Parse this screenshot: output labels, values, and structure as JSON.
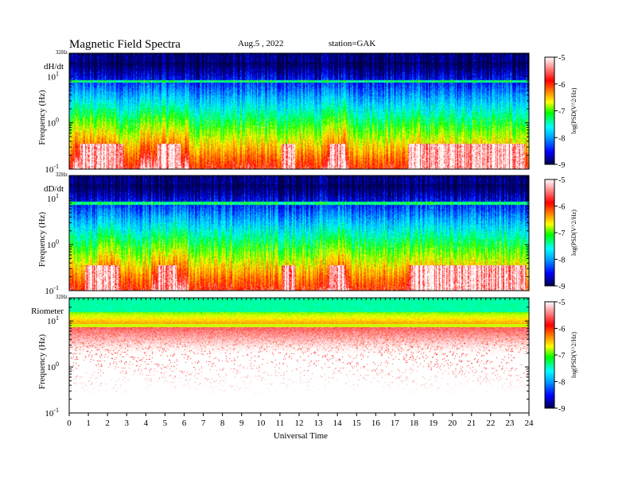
{
  "header": {
    "title": "Magnetic  Field  Spectra",
    "date": "Aug.5  , 2022",
    "station": "station=GAK"
  },
  "chart_data": {
    "type": "heatmap",
    "xlabel": "Universal Time",
    "x_ticks": [
      "0",
      "1",
      "2",
      "3",
      "4",
      "5",
      "6",
      "7",
      "8",
      "9",
      "10",
      "11",
      "12",
      "13",
      "14",
      "15",
      "16",
      "17",
      "18",
      "19",
      "20",
      "21",
      "22",
      "23",
      "24"
    ],
    "xlim": [
      0,
      24
    ],
    "ylim_hz": [
      0.1,
      32
    ],
    "y_scale": "log",
    "y_top_label": "32Hz",
    "y_tick_labels": [
      {
        "base": "10",
        "exp": "1",
        "value": 10
      },
      {
        "base": "10",
        "exp": "0",
        "value": 1
      },
      {
        "base": "10",
        "exp": "-1",
        "value": 0.1
      }
    ],
    "colormap": [
      "#00004a",
      "#0000ff",
      "#00a0ff",
      "#00ffff",
      "#00ff00",
      "#ffff00",
      "#ff8000",
      "#ff0000",
      "#ffffff"
    ],
    "panels": [
      {
        "label": "dH/dt",
        "ylabel": "Frequency  (Hz)",
        "colorbar": {
          "title": "log(PSD(V^2/Hz)",
          "range": [
            -9,
            -5
          ],
          "ticks": [
            "-5",
            "-6",
            "-7",
            "-8",
            "-9"
          ]
        },
        "noise_band_hz": 8,
        "quiet_white_patches_ut": [
          [
            0.5,
            2.8
          ],
          [
            4.6,
            5.8
          ],
          [
            11.1,
            11.8
          ],
          [
            13.6,
            14.4
          ],
          [
            17.7,
            23.8
          ]
        ],
        "enhanced_broadband_ut": [
          [
            0.2,
            2.6
          ],
          [
            3.7,
            6.2
          ],
          [
            13.5,
            14.6
          ]
        ]
      },
      {
        "label": "dD/dt",
        "ylabel": "Frequency  (Hz)",
        "colorbar": {
          "title": "log(PSD(V^2/Hz)",
          "range": [
            -9,
            -5
          ],
          "ticks": [
            "-5",
            "-6",
            "-7",
            "-8",
            "-9"
          ]
        },
        "noise_band_hz": 8,
        "quiet_white_patches_ut": [
          [
            0.8,
            2.6
          ],
          [
            4.6,
            5.6
          ],
          [
            11.1,
            11.8
          ],
          [
            13.6,
            14.4
          ],
          [
            17.8,
            23.9
          ]
        ],
        "enhanced_broadband_ut": [
          [
            1.5,
            2.6
          ],
          [
            4.3,
            6.2
          ],
          [
            13.5,
            14.6
          ]
        ]
      },
      {
        "label": "Riometer",
        "ylabel": "Frequency  (Hz)",
        "colorbar": {
          "title": "log(PSD(V^2/Hz)",
          "range": [
            -9,
            -5
          ],
          "ticks": [
            "-5",
            "-6",
            "-7",
            "-8",
            "-9"
          ]
        },
        "noise_band_hz": 8
      }
    ]
  }
}
